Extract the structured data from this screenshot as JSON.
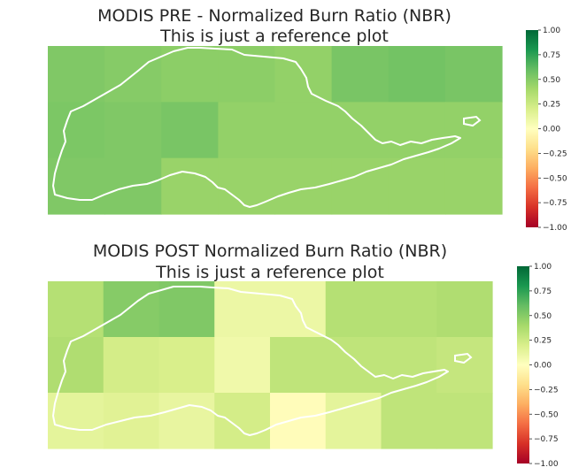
{
  "chart_data": [
    {
      "type": "heatmap",
      "title": "MODIS PRE - Normalized Burn Ratio (NBR)",
      "subtitle": "This is just a reference plot",
      "colorbar": {
        "colormap": "RdYlGn",
        "range": [
          -1.0,
          1.0
        ],
        "ticks": [
          1.0,
          0.75,
          0.5,
          0.25,
          0.0,
          -0.25,
          -0.5,
          -0.75,
          -1.0
        ],
        "tick_labels": [
          "1.00",
          "0.75",
          "0.50",
          "0.25",
          "0.00",
          "−0.25",
          "−0.50",
          "−0.75",
          "−1.00"
        ]
      },
      "grid_values": [
        [
          0.52,
          0.5,
          0.48,
          0.48,
          0.46,
          0.54,
          0.56,
          0.54
        ],
        [
          0.53,
          0.52,
          0.54,
          0.46,
          0.46,
          0.46,
          0.46,
          0.46
        ],
        [
          0.52,
          0.52,
          0.44,
          0.44,
          0.44,
          0.44,
          0.44,
          0.44
        ]
      ]
    },
    {
      "type": "heatmap",
      "title": "MODIS POST Normalized Burn Ratio (NBR)",
      "subtitle": "This is just a reference plot",
      "colorbar": {
        "colormap": "RdYlGn",
        "range": [
          -1.0,
          1.0
        ],
        "ticks": [
          1.0,
          0.75,
          0.5,
          0.25,
          0.0,
          -0.25,
          -0.5,
          -0.75,
          -1.0
        ],
        "tick_labels": [
          "1.00",
          "0.75",
          "0.50",
          "0.25",
          "0.00",
          "−0.25",
          "−0.50",
          "−0.75",
          "−1.00"
        ]
      },
      "grid_values": [
        [
          0.34,
          0.5,
          0.52,
          0.1,
          0.1,
          0.34,
          0.34,
          0.36
        ],
        [
          0.36,
          0.22,
          0.2,
          0.08,
          0.3,
          0.3,
          0.3,
          0.28
        ],
        [
          0.14,
          0.16,
          0.12,
          0.22,
          -0.02,
          0.14,
          0.3,
          0.3
        ]
      ]
    }
  ]
}
